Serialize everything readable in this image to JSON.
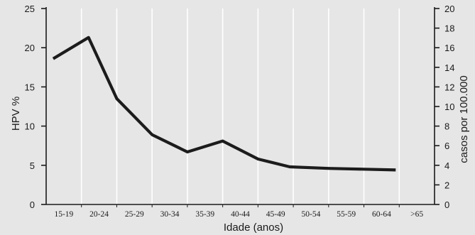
{
  "chart_data": {
    "type": "line",
    "title": "",
    "xlabel": "Idade (anos)",
    "ylabel": "HPV %",
    "y2label": "casos por 100.000",
    "categories": [
      "15-19",
      "20-24",
      "25-29",
      "30-34",
      "35-39",
      "40-44",
      "45-49",
      "50-54",
      "55-59",
      "60-64",
      ">65"
    ],
    "x_points": [
      0.2,
      1.2,
      2.0,
      3.0,
      4.0,
      5.0,
      6.0,
      6.9,
      8.0,
      9.0,
      9.9
    ],
    "values": [
      18.6,
      21.3,
      13.5,
      8.9,
      6.7,
      8.1,
      5.8,
      4.8,
      4.6,
      4.5,
      4.4
    ],
    "ylim": [
      0,
      25
    ],
    "yticks": [
      "0",
      "5",
      "10",
      "15",
      "20",
      "25"
    ],
    "y2lim": [
      0,
      20
    ],
    "y2ticks": [
      "0",
      "2",
      "4",
      "6",
      "8",
      "10",
      "12",
      "14",
      "16",
      "18",
      "20"
    ],
    "grid": "vertical",
    "line_color": "#1c1c1c",
    "background_color": "#e6e6e6"
  }
}
